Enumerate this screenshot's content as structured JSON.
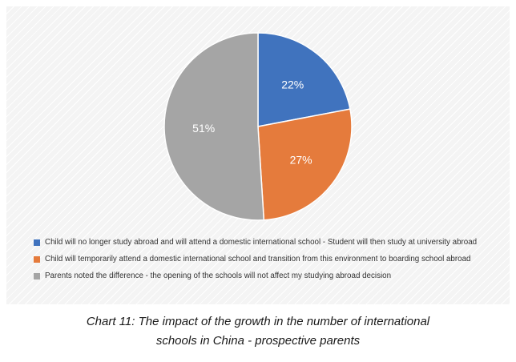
{
  "chart_data": {
    "type": "pie",
    "slices": [
      {
        "label": "Child will no longer study abroad and will attend a domestic international school - Student will then study at university abroad",
        "value": 22,
        "display": "22%",
        "color": "#4073be"
      },
      {
        "label": "Child will temporarily attend a domestic international school and transition from this environment to boarding school abroad",
        "value": 27,
        "display": "27%",
        "color": "#e57b3c"
      },
      {
        "label": "Parents noted the difference - the opening of the schools will not affect my studying abroad decision",
        "value": 51,
        "display": "51%",
        "color": "#a5a5a5"
      }
    ],
    "legend_position": "bottom-left",
    "start_angle": "top, clockwise"
  },
  "caption": {
    "line1": "Chart 11: The impact of the growth in the number of international",
    "line2": "schools in China - prospective parents"
  }
}
